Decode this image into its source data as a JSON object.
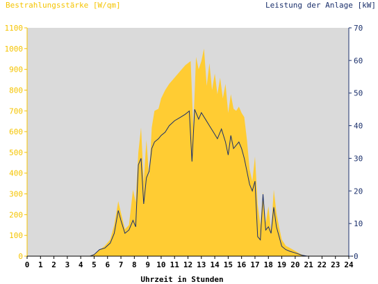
{
  "chart_data": {
    "type": "area",
    "title_left": "Bestrahlungsstärke [W/qm]",
    "title_right": "Leistung der Anlage [kW]",
    "xlabel": "Uhrzeit in Stunden",
    "xlim": [
      0,
      24
    ],
    "ylim_left": [
      0,
      1100
    ],
    "ylim_right": [
      0,
      70
    ],
    "x_ticks": [
      "0",
      "1",
      "2",
      "3",
      "4",
      "5",
      "6",
      "7",
      "8",
      "9",
      "10",
      "11",
      "12",
      "13",
      "14",
      "15",
      "16",
      "17",
      "18",
      "19",
      "20",
      "21",
      "22",
      "23",
      "24"
    ],
    "y_ticks_left": [
      "0",
      "100",
      "200",
      "300",
      "400",
      "500",
      "600",
      "700",
      "800",
      "900",
      "1000",
      "1100"
    ],
    "y_ticks_right": [
      "0",
      "10",
      "20",
      "30",
      "40",
      "50",
      "60",
      "70"
    ],
    "grid": false,
    "colors": {
      "plot_bg": "#dadada",
      "irradiance_fill": "#ffcc33",
      "power_line": "#1a2f6b",
      "left_axis": "#f5c400",
      "right_axis": "#1a2f6b"
    },
    "series": [
      {
        "name": "Bestrahlungsstärke [W/qm]",
        "axis": "left",
        "kind": "area",
        "points": [
          [
            0,
            0
          ],
          [
            4.6,
            0
          ],
          [
            5.0,
            10
          ],
          [
            5.4,
            30
          ],
          [
            5.8,
            50
          ],
          [
            6.2,
            80
          ],
          [
            6.5,
            150
          ],
          [
            6.8,
            265
          ],
          [
            7.0,
            210
          ],
          [
            7.3,
            130
          ],
          [
            7.6,
            150
          ],
          [
            7.9,
            320
          ],
          [
            8.1,
            260
          ],
          [
            8.3,
            500
          ],
          [
            8.5,
            620
          ],
          [
            8.7,
            360
          ],
          [
            8.9,
            560
          ],
          [
            9.1,
            380
          ],
          [
            9.3,
            620
          ],
          [
            9.5,
            700
          ],
          [
            9.8,
            710
          ],
          [
            10.0,
            760
          ],
          [
            10.3,
            800
          ],
          [
            10.6,
            830
          ],
          [
            11.0,
            860
          ],
          [
            11.4,
            890
          ],
          [
            11.8,
            920
          ],
          [
            12.2,
            940
          ],
          [
            12.4,
            620
          ],
          [
            12.6,
            960
          ],
          [
            12.8,
            900
          ],
          [
            13.0,
            940
          ],
          [
            13.2,
            1000
          ],
          [
            13.4,
            820
          ],
          [
            13.6,
            930
          ],
          [
            13.8,
            800
          ],
          [
            14.0,
            880
          ],
          [
            14.2,
            780
          ],
          [
            14.4,
            860
          ],
          [
            14.6,
            760
          ],
          [
            14.8,
            830
          ],
          [
            15.0,
            690
          ],
          [
            15.2,
            780
          ],
          [
            15.4,
            710
          ],
          [
            15.6,
            700
          ],
          [
            15.8,
            720
          ],
          [
            16.0,
            690
          ],
          [
            16.2,
            670
          ],
          [
            16.4,
            560
          ],
          [
            16.6,
            420
          ],
          [
            16.8,
            360
          ],
          [
            17.0,
            480
          ],
          [
            17.2,
            250
          ],
          [
            17.4,
            150
          ],
          [
            17.6,
            310
          ],
          [
            17.8,
            160
          ],
          [
            18.0,
            240
          ],
          [
            18.2,
            120
          ],
          [
            18.4,
            320
          ],
          [
            18.6,
            210
          ],
          [
            18.8,
            140
          ],
          [
            19.0,
            80
          ],
          [
            19.3,
            50
          ],
          [
            19.6,
            40
          ],
          [
            20.0,
            25
          ],
          [
            20.4,
            10
          ],
          [
            20.8,
            0
          ],
          [
            24,
            0
          ]
        ]
      },
      {
        "name": "Leistung der Anlage [kW]",
        "axis": "right",
        "kind": "line",
        "points": [
          [
            0,
            0
          ],
          [
            4.7,
            0
          ],
          [
            5.0,
            0.5
          ],
          [
            5.4,
            2
          ],
          [
            5.8,
            2.5
          ],
          [
            6.2,
            4
          ],
          [
            6.5,
            7
          ],
          [
            6.8,
            14
          ],
          [
            7.0,
            11
          ],
          [
            7.3,
            7
          ],
          [
            7.6,
            8
          ],
          [
            7.9,
            11
          ],
          [
            8.1,
            9
          ],
          [
            8.3,
            28
          ],
          [
            8.5,
            30
          ],
          [
            8.7,
            16
          ],
          [
            8.9,
            24
          ],
          [
            9.1,
            26
          ],
          [
            9.3,
            33
          ],
          [
            9.5,
            35
          ],
          [
            9.8,
            36
          ],
          [
            10.0,
            37
          ],
          [
            10.3,
            38
          ],
          [
            10.6,
            40
          ],
          [
            11.0,
            41.5
          ],
          [
            11.4,
            42.5
          ],
          [
            11.8,
            43.5
          ],
          [
            12.1,
            44.5
          ],
          [
            12.3,
            29
          ],
          [
            12.5,
            45
          ],
          [
            12.8,
            42
          ],
          [
            13.0,
            44
          ],
          [
            13.3,
            42
          ],
          [
            13.6,
            40
          ],
          [
            13.9,
            38
          ],
          [
            14.2,
            36
          ],
          [
            14.5,
            39
          ],
          [
            14.8,
            35
          ],
          [
            15.0,
            31
          ],
          [
            15.2,
            37
          ],
          [
            15.4,
            33
          ],
          [
            15.6,
            34
          ],
          [
            15.8,
            35
          ],
          [
            16.0,
            33
          ],
          [
            16.2,
            30
          ],
          [
            16.4,
            26
          ],
          [
            16.6,
            22
          ],
          [
            16.8,
            20
          ],
          [
            17.0,
            23
          ],
          [
            17.2,
            6
          ],
          [
            17.4,
            5
          ],
          [
            17.6,
            19
          ],
          [
            17.8,
            8
          ],
          [
            18.0,
            9
          ],
          [
            18.2,
            7
          ],
          [
            18.4,
            15
          ],
          [
            18.6,
            9
          ],
          [
            18.8,
            6
          ],
          [
            19.0,
            3
          ],
          [
            19.3,
            2
          ],
          [
            19.6,
            1.5
          ],
          [
            20.0,
            1
          ],
          [
            20.5,
            0.3
          ],
          [
            20.9,
            0
          ],
          [
            24,
            0
          ]
        ]
      }
    ]
  }
}
